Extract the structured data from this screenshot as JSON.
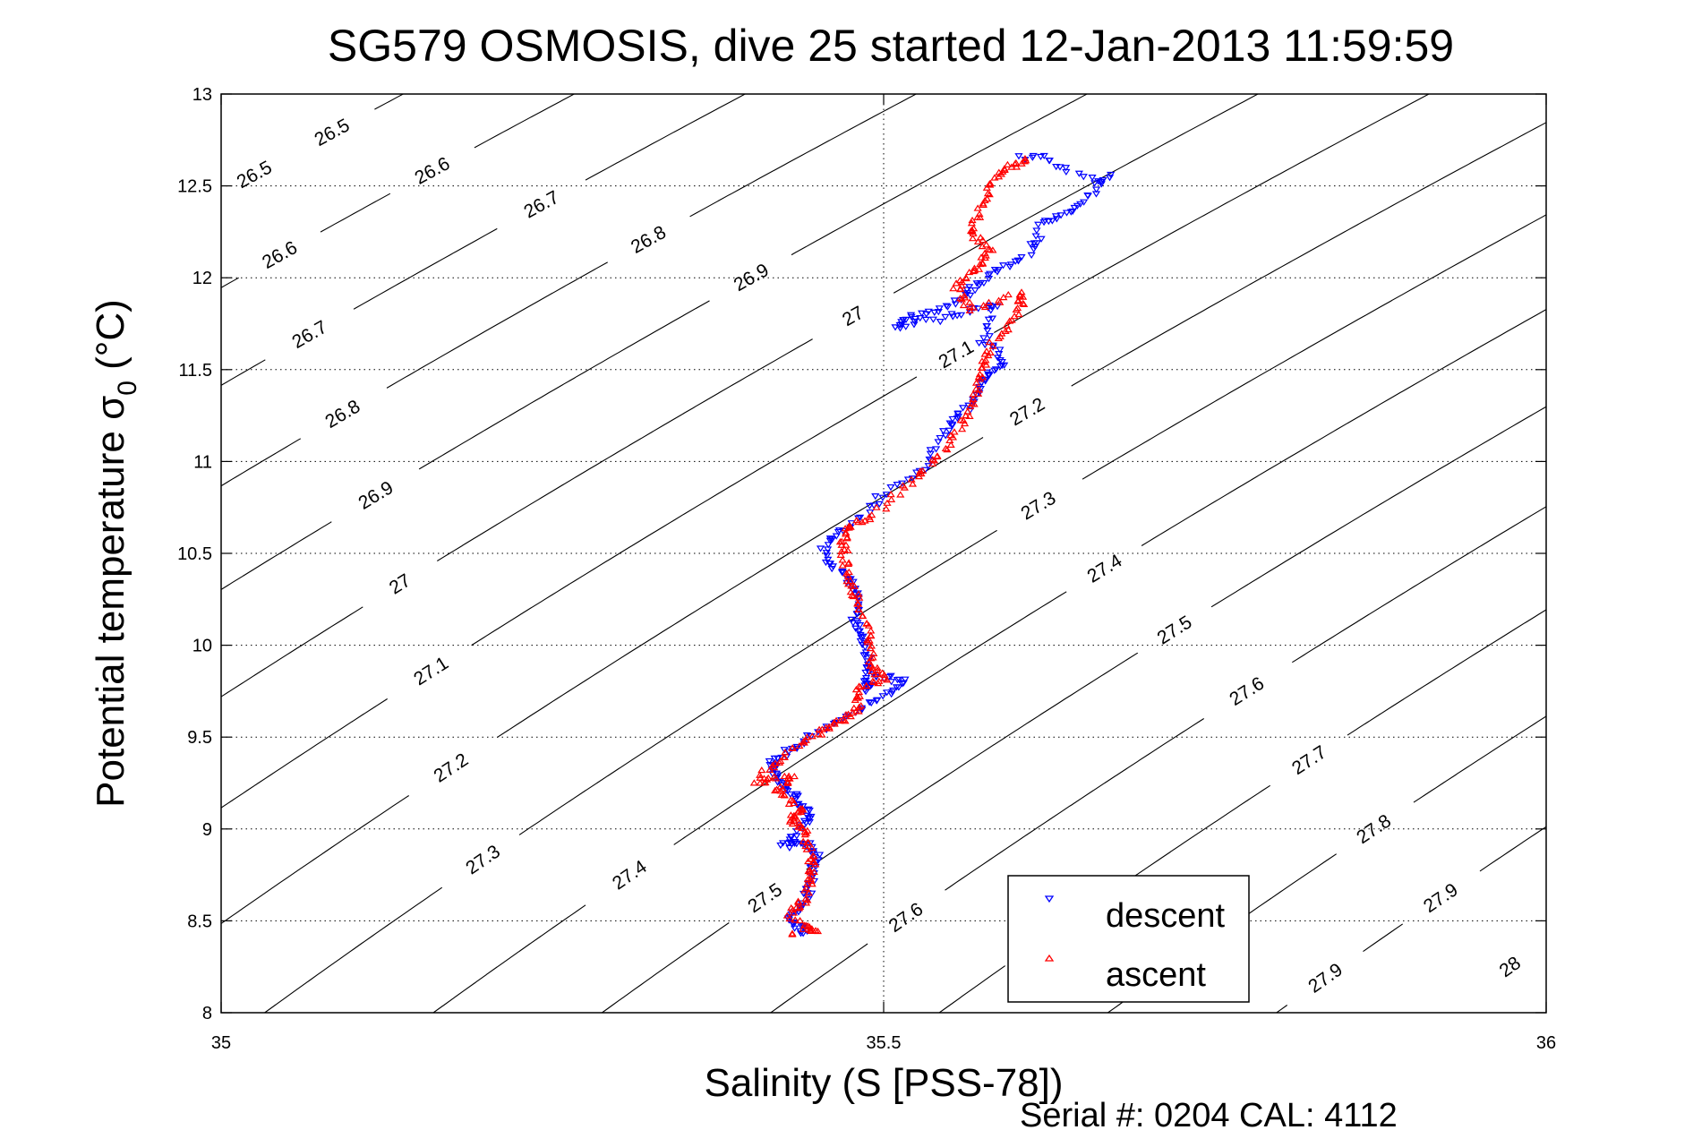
{
  "chart_data": {
    "type": "scatter",
    "title": "SG579 OSMOSIS, dive 25 started 12-Jan-2013 11:59:59",
    "xlabel": "Salinity (S [PSS-78])",
    "ylabel_main": "Potential temperature σ",
    "ylabel_sub": "0",
    "ylabel_unit": " (°C)",
    "xlim": [
      35,
      36
    ],
    "ylim": [
      8,
      13
    ],
    "xticks": [
      35,
      35.5,
      36
    ],
    "xtick_labels": [
      "35",
      "35.5",
      "36"
    ],
    "yticks": [
      8,
      8.5,
      9,
      9.5,
      10,
      10.5,
      11,
      11.5,
      12,
      12.5,
      13
    ],
    "ytick_labels": [
      "8",
      "8.5",
      "9",
      "9.5",
      "10",
      "10.5",
      "11",
      "11.5",
      "12",
      "12.5",
      "13"
    ],
    "grid": true,
    "grid_style": "dotted",
    "legend_position": "bottom-right",
    "density_contours": {
      "levels": [
        26.5,
        26.6,
        26.7,
        26.8,
        26.9,
        27.0,
        27.1,
        27.2,
        27.3,
        27.4,
        27.5,
        27.6,
        27.7,
        27.8,
        27.9,
        28.0
      ],
      "label_texts": [
        "26.5",
        "26.6",
        "26.7",
        "26.8",
        "26.9",
        "27",
        "27.1",
        "27.2",
        "27.3",
        "27.4",
        "27.5",
        "27.6",
        "27.7",
        "27.8",
        "27.9",
        "28"
      ],
      "color": "#000000"
    },
    "series": [
      {
        "name": "descent",
        "marker": "triangle-down",
        "color": "#0000ff",
        "points": [
          [
            35.605,
            12.65
          ],
          [
            35.62,
            12.66
          ],
          [
            35.635,
            12.59
          ],
          [
            35.66,
            12.52
          ],
          [
            35.67,
            12.55
          ],
          [
            35.655,
            12.45
          ],
          [
            35.645,
            12.38
          ],
          [
            35.63,
            12.33
          ],
          [
            35.62,
            12.3
          ],
          [
            35.615,
            12.2
          ],
          [
            35.61,
            12.13
          ],
          [
            35.595,
            12.08
          ],
          [
            35.585,
            12.02
          ],
          [
            35.575,
            11.97
          ],
          [
            35.565,
            11.93
          ],
          [
            35.555,
            11.87
          ],
          [
            35.54,
            11.82
          ],
          [
            35.525,
            11.79
          ],
          [
            35.515,
            11.78
          ],
          [
            35.51,
            11.73
          ],
          [
            35.53,
            11.76
          ],
          [
            35.555,
            11.8
          ],
          [
            35.57,
            11.83
          ],
          [
            35.585,
            11.85
          ],
          [
            35.58,
            11.75
          ],
          [
            35.575,
            11.66
          ],
          [
            35.585,
            11.6
          ],
          [
            35.59,
            11.52
          ],
          [
            35.58,
            11.48
          ],
          [
            35.575,
            11.45
          ],
          [
            35.57,
            11.38
          ],
          [
            35.565,
            11.3
          ],
          [
            35.555,
            11.25
          ],
          [
            35.55,
            11.2
          ],
          [
            35.54,
            11.1
          ],
          [
            35.535,
            11.0
          ],
          [
            35.52,
            10.92
          ],
          [
            35.5,
            10.83
          ],
          [
            35.49,
            10.75
          ],
          [
            35.475,
            10.65
          ],
          [
            35.46,
            10.58
          ],
          [
            35.455,
            10.52
          ],
          [
            35.46,
            10.45
          ],
          [
            35.468,
            10.4
          ],
          [
            35.475,
            10.35
          ],
          [
            35.478,
            10.29
          ],
          [
            35.48,
            10.23
          ],
          [
            35.478,
            10.16
          ],
          [
            35.48,
            10.1
          ],
          [
            35.483,
            10.05
          ],
          [
            35.485,
            10.0
          ],
          [
            35.488,
            9.93
          ],
          [
            35.49,
            9.87
          ],
          [
            35.487,
            9.8
          ],
          [
            35.485,
            9.75
          ],
          [
            35.49,
            9.83
          ],
          [
            35.505,
            9.82
          ],
          [
            35.515,
            9.8
          ],
          [
            35.505,
            9.75
          ],
          [
            35.495,
            9.7
          ],
          [
            35.48,
            9.64
          ],
          [
            35.46,
            9.56
          ],
          [
            35.445,
            9.5
          ],
          [
            35.43,
            9.43
          ],
          [
            35.42,
            9.39
          ],
          [
            35.415,
            9.36
          ],
          [
            35.417,
            9.32
          ],
          [
            35.42,
            9.28
          ],
          [
            35.425,
            9.24
          ],
          [
            35.43,
            9.2
          ],
          [
            35.435,
            9.16
          ],
          [
            35.44,
            9.12
          ],
          [
            35.445,
            9.07
          ],
          [
            35.44,
            9.02
          ],
          [
            35.43,
            8.96
          ],
          [
            35.425,
            8.91
          ],
          [
            35.432,
            8.92
          ],
          [
            35.44,
            8.93
          ],
          [
            35.447,
            8.89
          ],
          [
            35.45,
            8.85
          ],
          [
            35.448,
            8.79
          ],
          [
            35.445,
            8.73
          ],
          [
            35.443,
            8.66
          ],
          [
            35.44,
            8.6
          ],
          [
            35.435,
            8.56
          ],
          [
            35.43,
            8.52
          ],
          [
            35.434,
            8.48
          ],
          [
            35.44,
            8.45
          ],
          [
            35.44,
            8.44
          ]
        ]
      },
      {
        "name": "ascent",
        "marker": "triangle-up",
        "color": "#ff0000",
        "points": [
          [
            35.43,
            8.44
          ],
          [
            35.45,
            8.44
          ],
          [
            35.44,
            8.48
          ],
          [
            35.43,
            8.53
          ],
          [
            35.435,
            8.58
          ],
          [
            35.44,
            8.62
          ],
          [
            35.443,
            8.69
          ],
          [
            35.445,
            8.75
          ],
          [
            35.446,
            8.8
          ],
          [
            35.445,
            8.85
          ],
          [
            35.443,
            8.92
          ],
          [
            35.44,
            8.98
          ],
          [
            35.435,
            9.02
          ],
          [
            35.43,
            9.05
          ],
          [
            35.435,
            9.08
          ],
          [
            35.44,
            9.1
          ],
          [
            35.43,
            9.15
          ],
          [
            35.42,
            9.2
          ],
          [
            35.425,
            9.24
          ],
          [
            35.43,
            9.28
          ],
          [
            35.415,
            9.27
          ],
          [
            35.405,
            9.26
          ],
          [
            35.412,
            9.32
          ],
          [
            35.42,
            9.38
          ],
          [
            35.432,
            9.44
          ],
          [
            35.445,
            9.5
          ],
          [
            35.455,
            9.54
          ],
          [
            35.465,
            9.57
          ],
          [
            35.472,
            9.61
          ],
          [
            35.48,
            9.65
          ],
          [
            35.48,
            9.7
          ],
          [
            35.48,
            9.75
          ],
          [
            35.49,
            9.79
          ],
          [
            35.5,
            9.82
          ],
          [
            35.495,
            9.86
          ],
          [
            35.49,
            9.9
          ],
          [
            35.49,
            9.97
          ],
          [
            35.49,
            10.05
          ],
          [
            35.485,
            10.13
          ],
          [
            35.48,
            10.22
          ],
          [
            35.478,
            10.28
          ],
          [
            35.475,
            10.35
          ],
          [
            35.472,
            10.42
          ],
          [
            35.47,
            10.5
          ],
          [
            35.47,
            10.56
          ],
          [
            35.47,
            10.62
          ],
          [
            35.48,
            10.66
          ],
          [
            35.49,
            10.7
          ],
          [
            35.505,
            10.79
          ],
          [
            35.52,
            10.88
          ],
          [
            35.53,
            10.95
          ],
          [
            35.54,
            11.02
          ],
          [
            35.55,
            11.11
          ],
          [
            35.56,
            11.2
          ],
          [
            35.565,
            11.28
          ],
          [
            35.57,
            11.35
          ],
          [
            35.572,
            11.42
          ],
          [
            35.575,
            11.5
          ],
          [
            35.578,
            11.56
          ],
          [
            35.58,
            11.62
          ],
          [
            35.59,
            11.71
          ],
          [
            35.6,
            11.8
          ],
          [
            35.603,
            11.86
          ],
          [
            35.605,
            11.92
          ],
          [
            35.585,
            11.87
          ],
          [
            35.565,
            11.82
          ],
          [
            35.56,
            11.88
          ],
          [
            35.555,
            11.95
          ],
          [
            35.562,
            12.0
          ],
          [
            35.57,
            12.05
          ],
          [
            35.575,
            12.1
          ],
          [
            35.58,
            12.15
          ],
          [
            35.572,
            12.2
          ],
          [
            35.565,
            12.25
          ],
          [
            35.57,
            12.32
          ],
          [
            35.575,
            12.4
          ],
          [
            35.58,
            12.48
          ],
          [
            35.585,
            12.55
          ],
          [
            35.592,
            12.59
          ],
          [
            35.6,
            12.62
          ],
          [
            35.61,
            12.65
          ]
        ]
      }
    ]
  },
  "legend": {
    "items": [
      {
        "label": "descent",
        "color": "#0000ff",
        "marker": "triangle-down"
      },
      {
        "label": "ascent",
        "color": "#ff0000",
        "marker": "triangle-up"
      }
    ]
  },
  "footer": {
    "serial_text": "Serial #: 0204  CAL: 4112"
  }
}
